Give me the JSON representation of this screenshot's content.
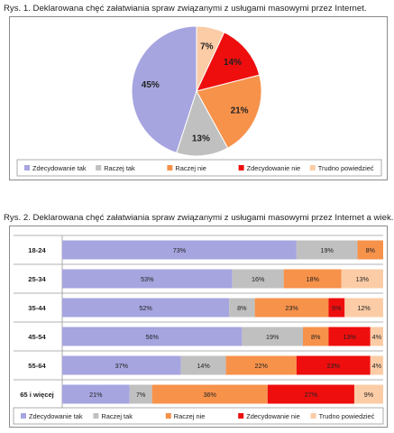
{
  "captions": {
    "fig1": "Rys. 1. Deklarowana chęć załatwiania spraw związanymi z usługami masowymi przez Internet.",
    "fig2": "Rys. 2. Deklarowana chęć załatwiania spraw związanymi z usługami masowymi przez Internet a wiek."
  },
  "colors": {
    "Zdecydowanie tak": "#a6a5e0",
    "Raczej tak": "#c0c0c0",
    "Raczej nie": "#f7924b",
    "Zdecydowanie nie": "#ee0e0e",
    "Trudno powiedzieć": "#fbcca6"
  },
  "chart_data": [
    {
      "type": "pie",
      "title": "Rys. 1. Deklarowana chęć załatwiania spraw związanymi z usługami masowymi przez Internet.",
      "categories": [
        "Zdecydowanie tak",
        "Raczej tak",
        "Raczej nie",
        "Zdecydowanie nie",
        "Trudno powiedzieć"
      ],
      "values": [
        45,
        13,
        21,
        14,
        7
      ],
      "labels": [
        "45%",
        "13%",
        "21%",
        "14%",
        "7%"
      ],
      "legend": [
        "Zdecydowanie tak",
        "Raczej tak",
        "Raczej nie",
        "Zdecydowanie nie",
        "Trudno powiedzieć"
      ],
      "legend_position": "bottom"
    },
    {
      "type": "bar",
      "orientation": "horizontal",
      "stacked": true,
      "title": "Rys. 2. Deklarowana chęć załatwiania spraw związanymi z usługami masowymi przez Internet a wiek.",
      "categories": [
        "18-24",
        "25-34",
        "35-44",
        "45-54",
        "55-64",
        "65 i więcej"
      ],
      "series": [
        {
          "name": "Zdecydowanie tak",
          "values": [
            73,
            53,
            52,
            56,
            37,
            21
          ],
          "labels": [
            "73%",
            "53%",
            "52%",
            "56%",
            "37%",
            "21%"
          ]
        },
        {
          "name": "Raczej tak",
          "values": [
            19,
            16,
            8,
            19,
            14,
            7
          ],
          "labels": [
            "19%",
            "16%",
            "8%",
            "19%",
            "14%",
            "7%"
          ]
        },
        {
          "name": "Raczej nie",
          "values": [
            8,
            18,
            23,
            8,
            22,
            36
          ],
          "labels": [
            "8%",
            "18%",
            "23%",
            "8%",
            "22%",
            "36%"
          ]
        },
        {
          "name": "Zdecydowanie nie",
          "values": [
            0,
            0,
            5,
            13,
            23,
            27
          ],
          "labels": [
            "",
            "",
            "5%",
            "13%",
            "23%",
            "27%"
          ]
        },
        {
          "name": "Trudno powiedzieć",
          "values": [
            0,
            13,
            12,
            4,
            4,
            9
          ],
          "labels": [
            "",
            "13%",
            "12%",
            "4%",
            "4%",
            "9%"
          ]
        }
      ],
      "xlim": [
        0,
        100
      ],
      "legend": [
        "Zdecydowanie tak",
        "Raczej tak",
        "Raczej nie",
        "Zdecydowanie nie",
        "Trudno powiedzieć"
      ],
      "legend_position": "bottom"
    }
  ]
}
